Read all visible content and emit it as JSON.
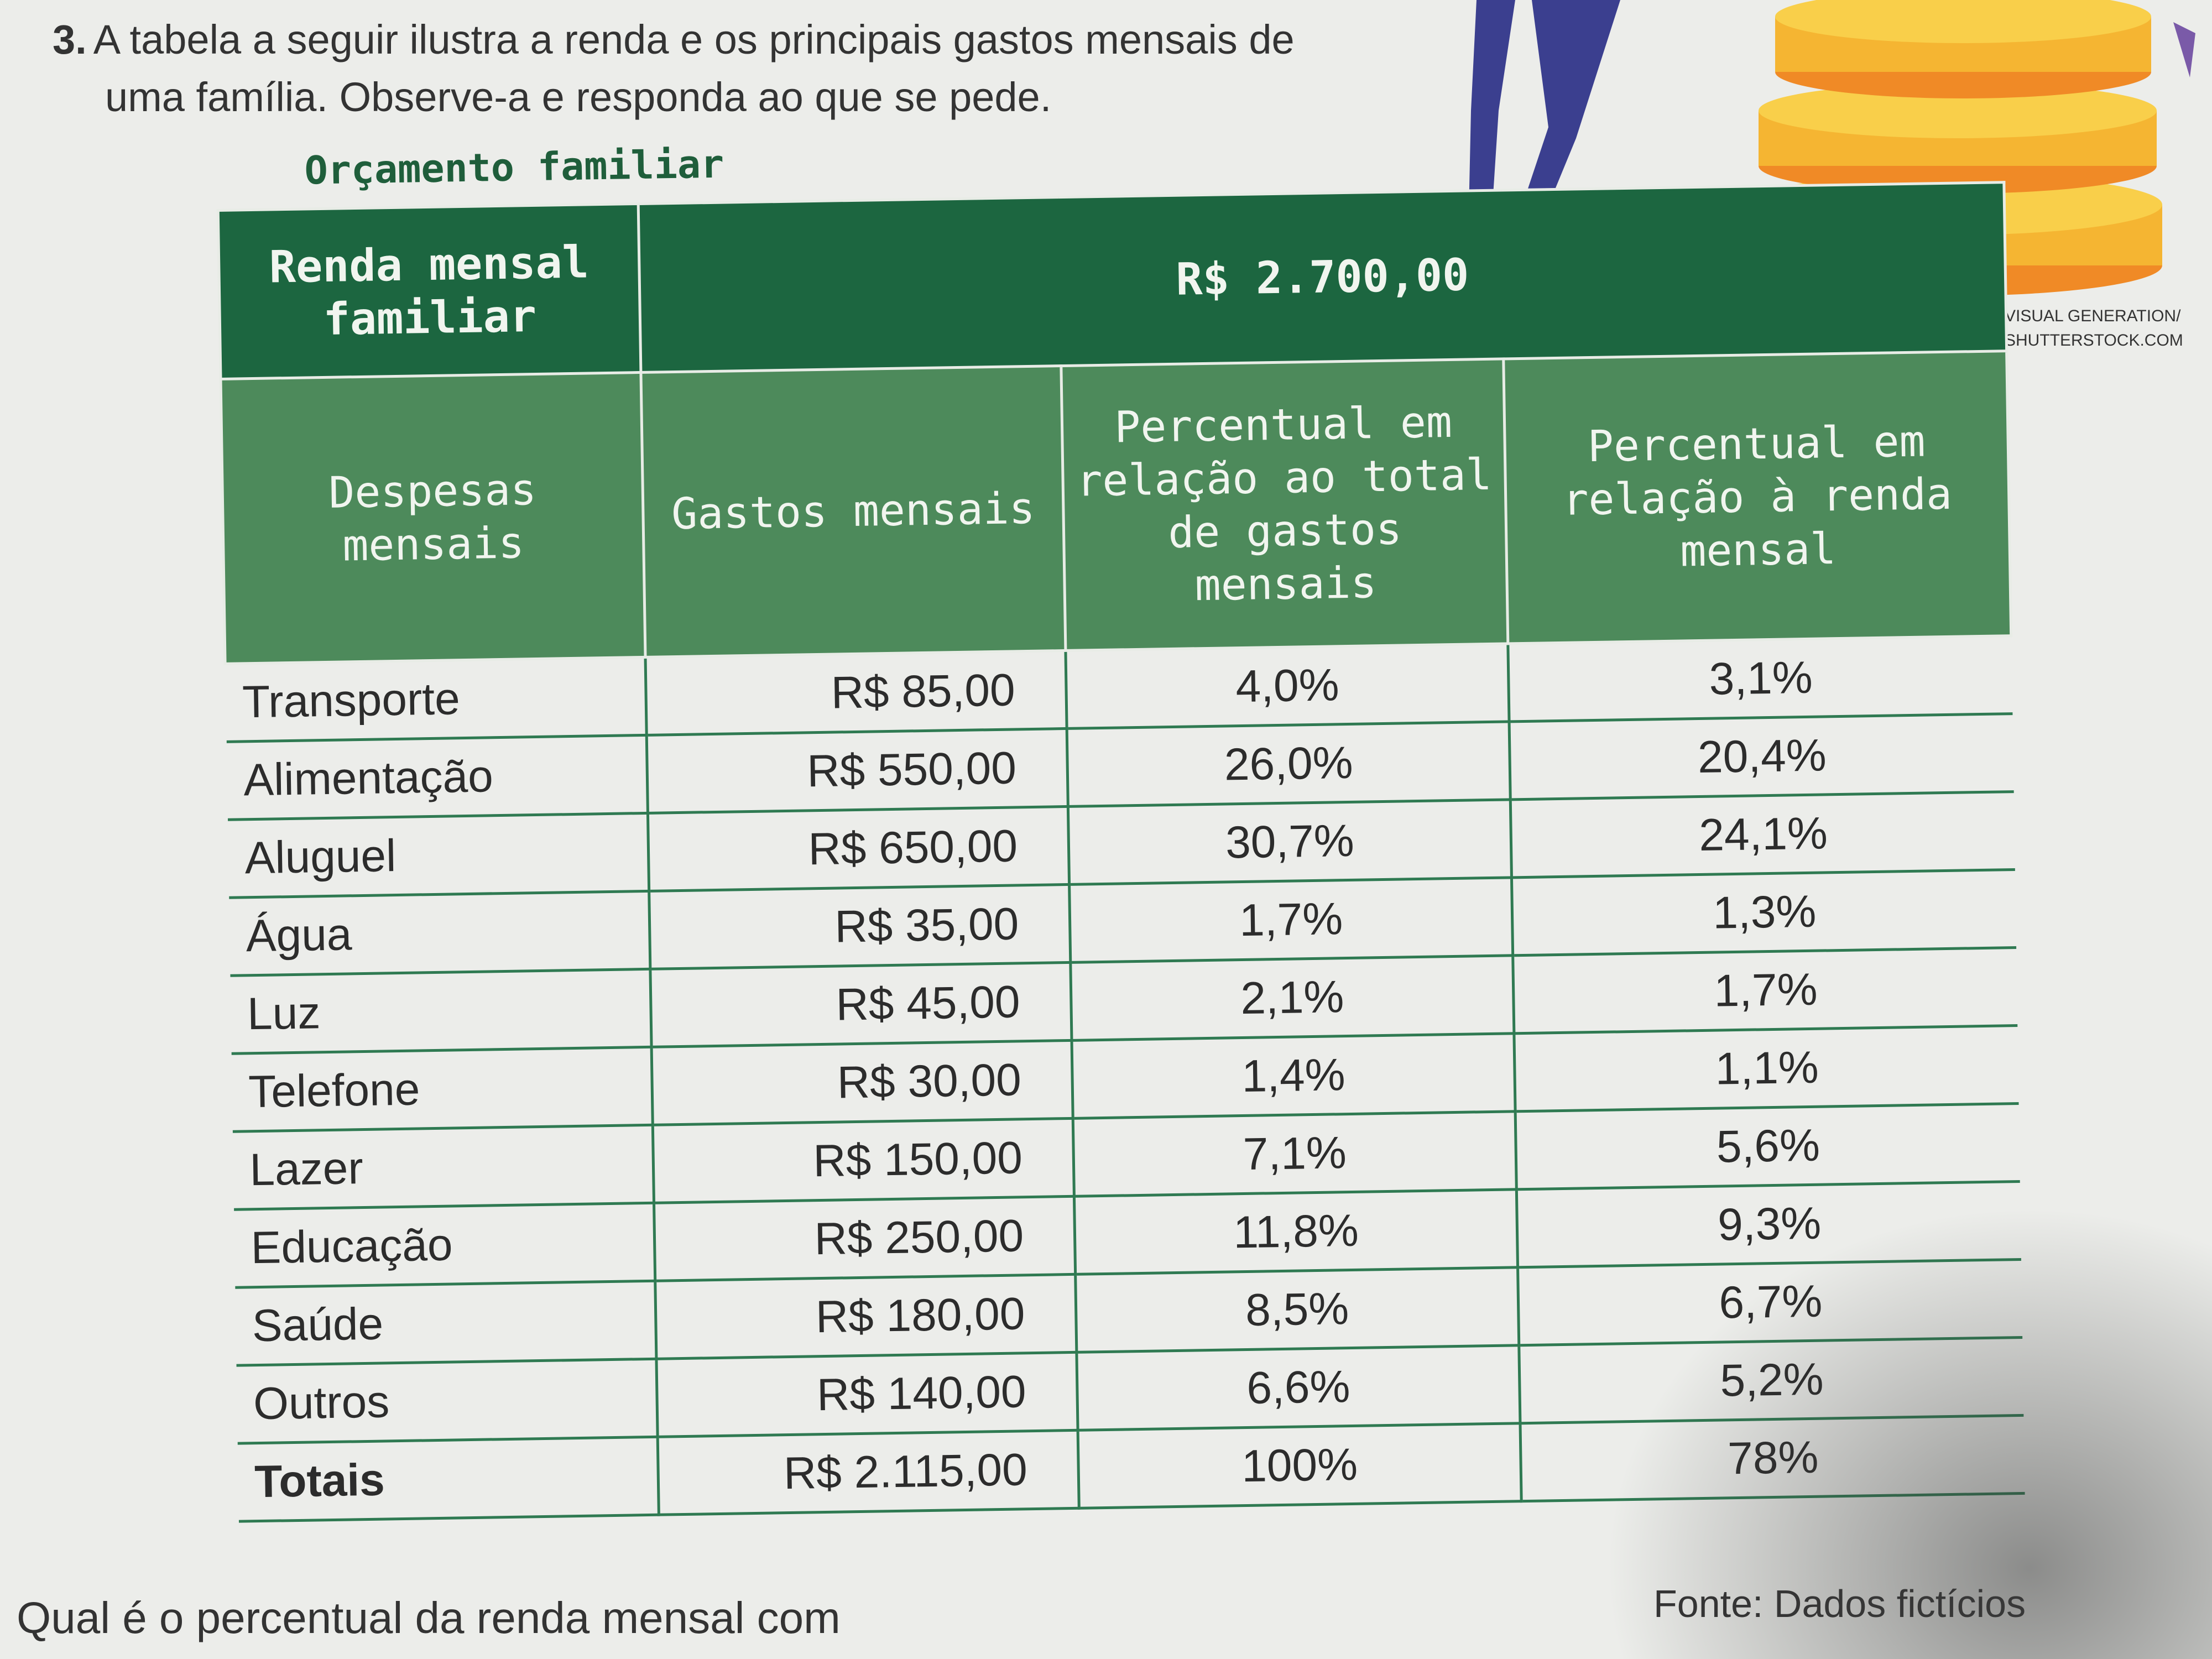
{
  "question": {
    "number": "3.",
    "line1": "A tabela a seguir ilustra a renda e os principais gastos mensais de",
    "line2": "uma família. Observe-a e responda ao que se pede."
  },
  "credit": {
    "line1": "VISUAL GENERATION/",
    "line2": "SHUTTERSTOCK.COM"
  },
  "table": {
    "title": "Orçamento familiar",
    "income_label": "Renda mensal familiar",
    "income_value": "R$ 2.700,00",
    "headers": [
      "Despesas mensais",
      "Gastos mensais",
      "Percentual em relação ao total de gastos mensais",
      "Percentual em relação à renda mensal"
    ],
    "rows": [
      {
        "label": "Transporte",
        "value": "R$ 85,00",
        "pct_total": "4,0%",
        "pct_income": "3,1%"
      },
      {
        "label": "Alimentação",
        "value": "R$ 550,00",
        "pct_total": "26,0%",
        "pct_income": "20,4%"
      },
      {
        "label": "Aluguel",
        "value": "R$ 650,00",
        "pct_total": "30,7%",
        "pct_income": "24,1%"
      },
      {
        "label": "Água",
        "value": "R$ 35,00",
        "pct_total": "1,7%",
        "pct_income": "1,3%"
      },
      {
        "label": "Luz",
        "value": "R$ 45,00",
        "pct_total": "2,1%",
        "pct_income": "1,7%"
      },
      {
        "label": "Telefone",
        "value": "R$ 30,00",
        "pct_total": "1,4%",
        "pct_income": "1,1%"
      },
      {
        "label": "Lazer",
        "value": "R$ 150,00",
        "pct_total": "7,1%",
        "pct_income": "5,6%"
      },
      {
        "label": "Educação",
        "value": "R$ 250,00",
        "pct_total": "11,8%",
        "pct_income": "9,3%"
      },
      {
        "label": "Saúde",
        "value": "R$ 180,00",
        "pct_total": "8,5%",
        "pct_income": "6,7%"
      },
      {
        "label": "Outros",
        "value": "R$ 140,00",
        "pct_total": "6,6%",
        "pct_income": "5,2%"
      }
    ],
    "total": {
      "label": "Totais",
      "value": "R$ 2.115,00",
      "pct_total": "100%",
      "pct_income": "78%"
    }
  },
  "source": "Fonte: Dados fictícios",
  "bottom_text": "Qual é o percentual da renda mensal com"
}
